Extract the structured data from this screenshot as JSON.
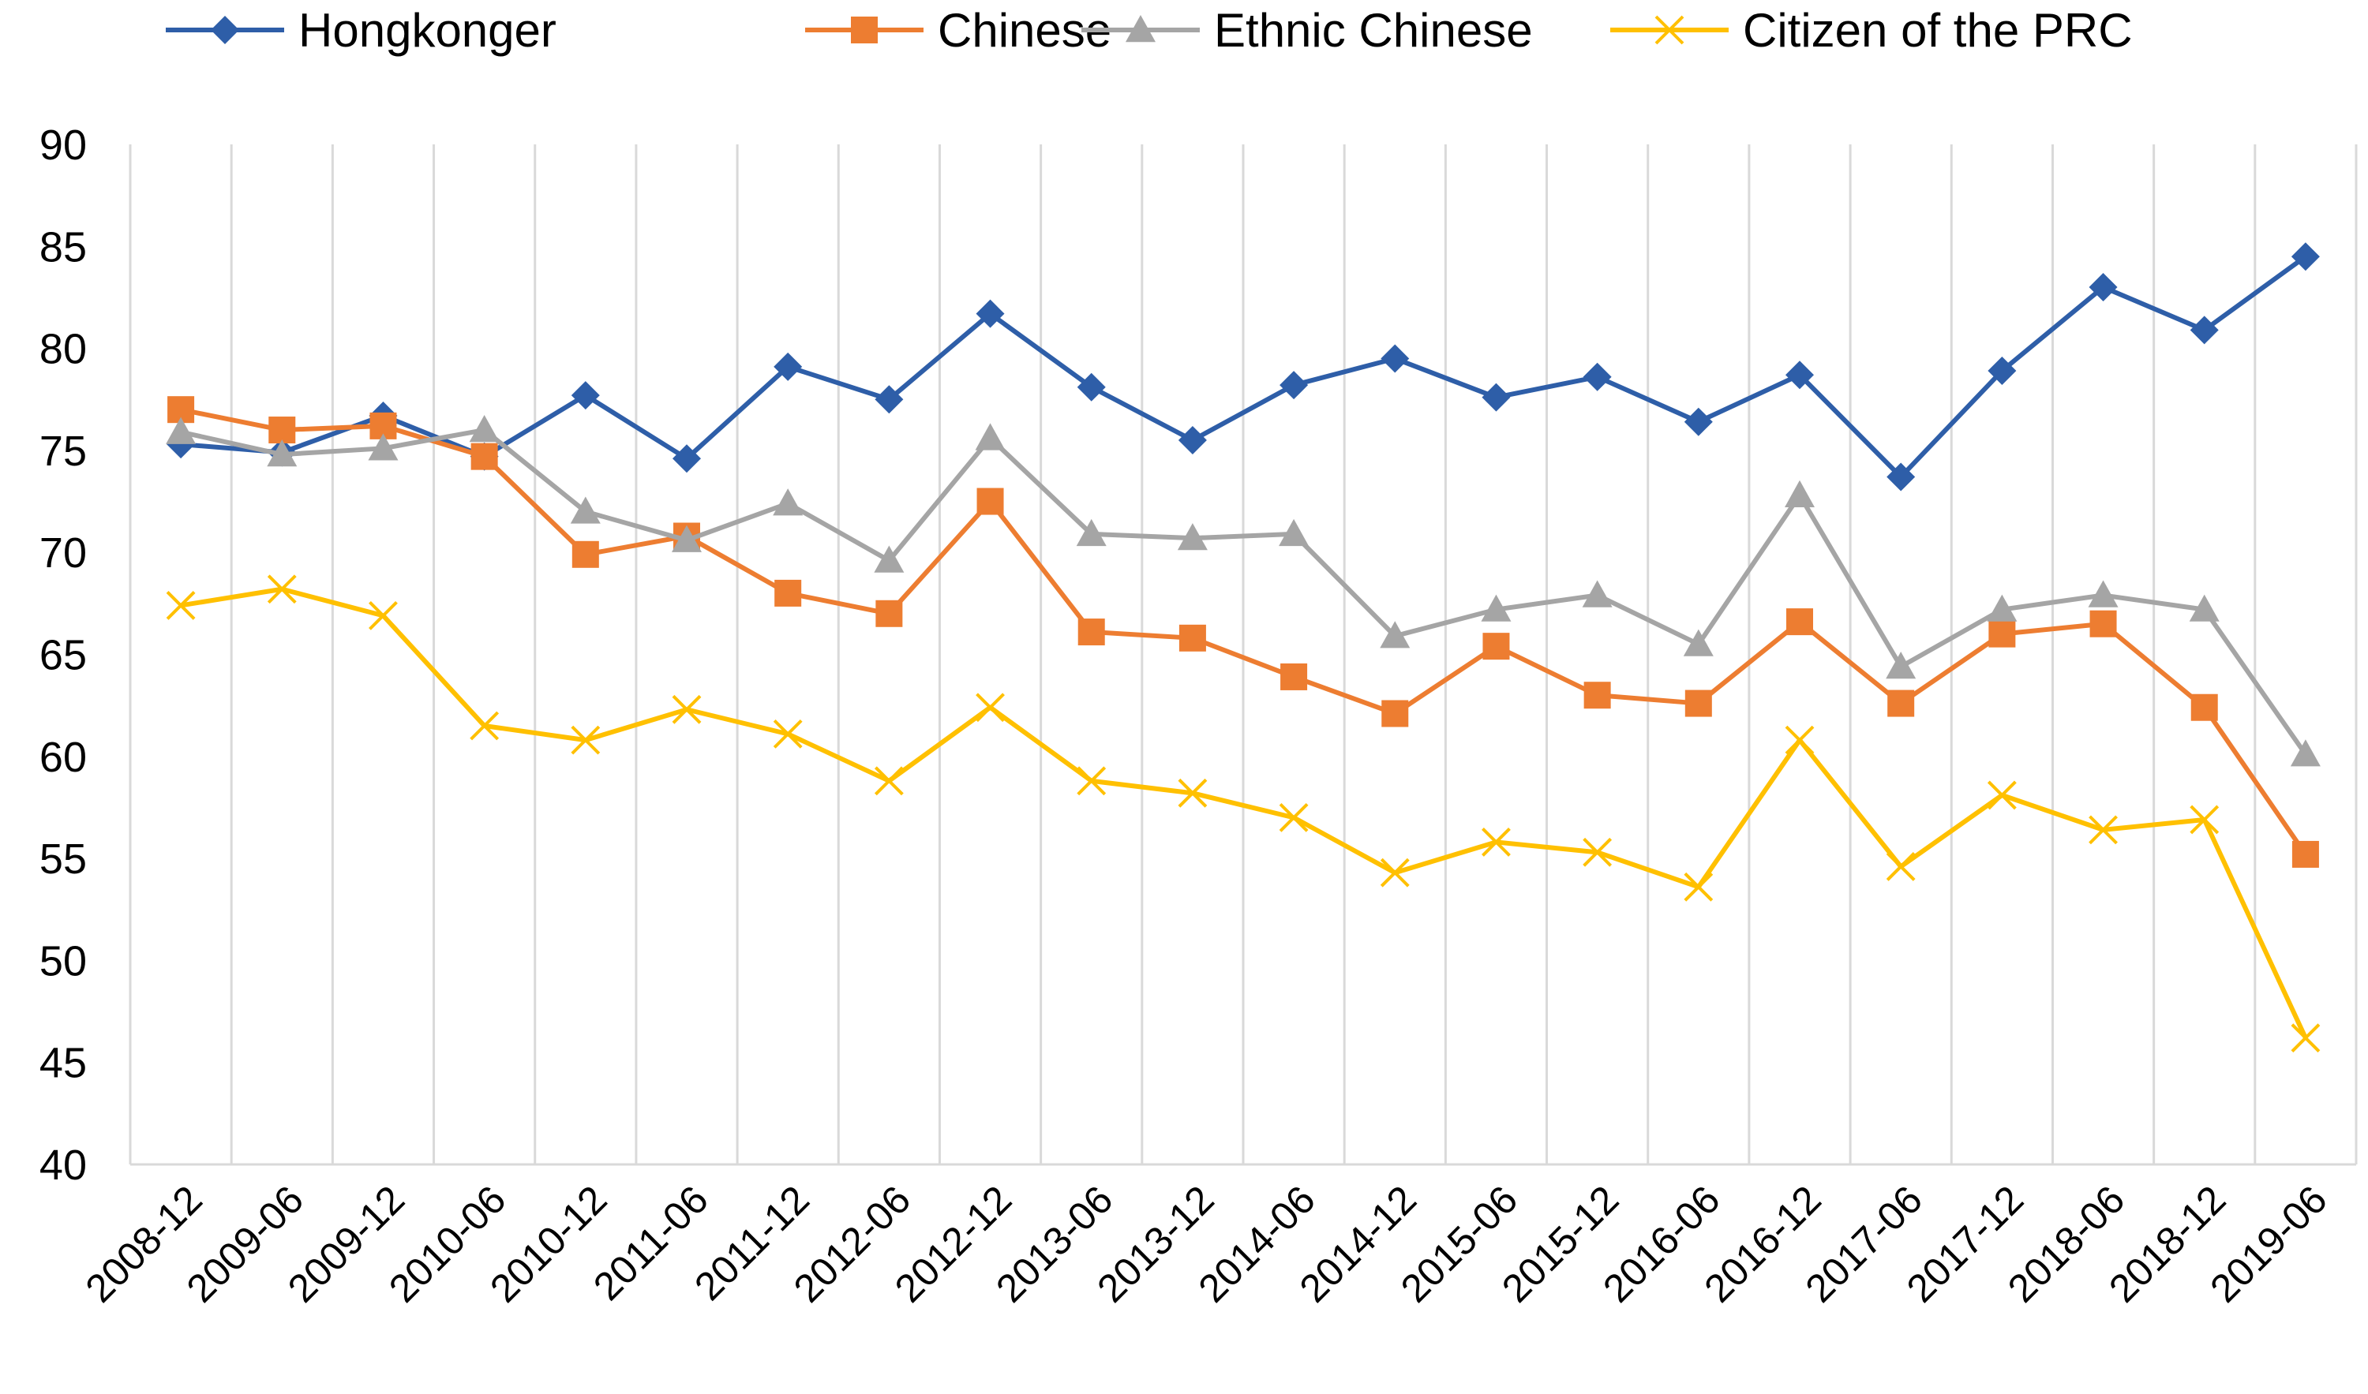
{
  "chart_data": {
    "type": "line",
    "title": "",
    "xlabel": "",
    "ylabel": "",
    "ylim": [
      40,
      90
    ],
    "yticks": [
      40,
      45,
      50,
      55,
      60,
      65,
      70,
      75,
      80,
      85,
      90
    ],
    "grid": "vertical",
    "legend_position": "top",
    "categories": [
      "2008-12",
      "2009-06",
      "2009-12",
      "2010-06",
      "2010-12",
      "2011-06",
      "2011-12",
      "2012-06",
      "2012-12",
      "2013-06",
      "2013-12",
      "2014-06",
      "2014-12",
      "2015-06",
      "2015-12",
      "2016-06",
      "2016-12",
      "2017-06",
      "2017-12",
      "2018-06",
      "2018-12",
      "2019-06"
    ],
    "series": [
      {
        "name": "Hongkonger",
        "marker": "diamond",
        "color": "#2e5ea8",
        "values": [
          75.3,
          74.9,
          76.7,
          74.7,
          77.7,
          74.6,
          79.1,
          77.5,
          81.7,
          78.1,
          75.5,
          78.2,
          79.5,
          77.6,
          78.6,
          76.4,
          78.7,
          73.7,
          78.9,
          83.0,
          80.9,
          84.5
        ]
      },
      {
        "name": "Chinese",
        "marker": "square",
        "color": "#ed7d31",
        "values": [
          77.0,
          76.0,
          76.2,
          74.7,
          69.9,
          70.8,
          68.0,
          67.0,
          72.5,
          66.1,
          65.8,
          63.9,
          62.1,
          65.4,
          63.0,
          62.6,
          66.6,
          62.6,
          66.0,
          66.5,
          62.4,
          55.2
        ]
      },
      {
        "name": "Ethnic Chinese",
        "marker": "triangle",
        "color": "#a5a5a5",
        "values": [
          75.9,
          74.8,
          75.1,
          76.0,
          72.0,
          70.6,
          72.4,
          69.6,
          75.6,
          70.9,
          70.7,
          70.9,
          65.9,
          67.2,
          67.9,
          65.5,
          72.8,
          64.4,
          67.2,
          67.9,
          67.2,
          60.1
        ]
      },
      {
        "name": "Citizen of the PRC",
        "marker": "x",
        "color": "#ffc000",
        "values": [
          67.4,
          68.2,
          66.9,
          61.5,
          60.8,
          62.3,
          61.1,
          58.8,
          62.4,
          58.8,
          58.2,
          57.0,
          54.3,
          55.8,
          55.3,
          53.6,
          60.8,
          54.6,
          58.1,
          56.4,
          56.9,
          46.2
        ]
      }
    ]
  }
}
